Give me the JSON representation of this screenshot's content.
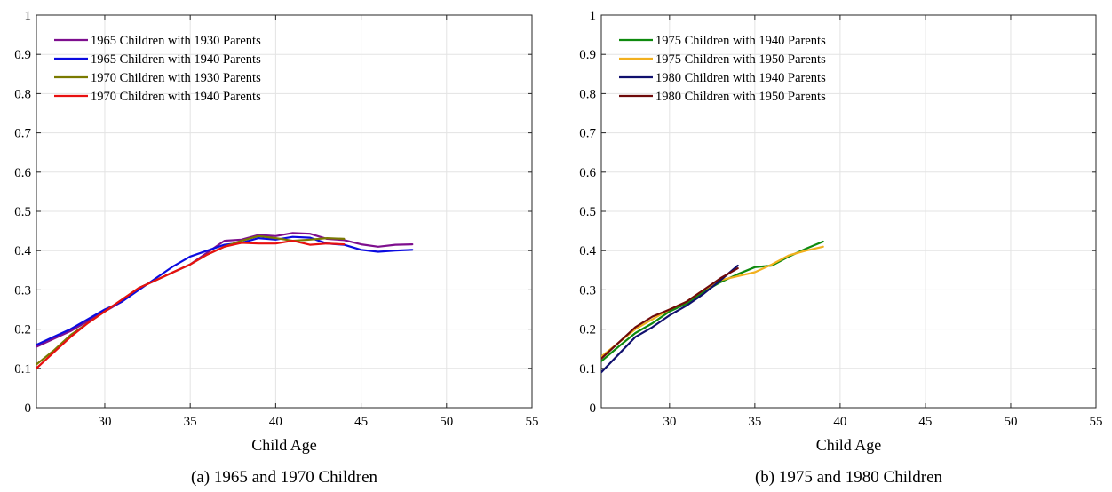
{
  "chart_data": [
    {
      "type": "line",
      "caption": "(a) 1965 and 1970 Children",
      "xlabel": "Child Age",
      "ylabel": "",
      "xlim": [
        26,
        55
      ],
      "ylim": [
        0,
        1
      ],
      "xticks": [
        "30",
        "35",
        "40",
        "45",
        "50",
        "55"
      ],
      "xtick_values": [
        30,
        35,
        40,
        45,
        50,
        55
      ],
      "yticks": [
        "0",
        "0.1",
        "0.2",
        "0.3",
        "0.4",
        "0.5",
        "0.6",
        "0.7",
        "0.8",
        "0.9",
        "1"
      ],
      "ytick_values": [
        0,
        0.1,
        0.2,
        0.3,
        0.4,
        0.5,
        0.6,
        0.7,
        0.8,
        0.9,
        1
      ],
      "grid": true,
      "legend_position": "top-left",
      "series": [
        {
          "name": "1965 Children with 1930 Parents",
          "color": "#7E0F8E",
          "x": [
            26,
            27,
            28,
            29,
            30,
            31,
            32,
            33,
            34,
            35,
            36,
            37,
            38,
            39,
            40,
            41,
            42,
            43,
            44,
            45,
            46,
            47,
            48
          ],
          "y": [
            0.155,
            0.175,
            0.195,
            0.22,
            0.245,
            0.27,
            0.305,
            0.325,
            0.345,
            0.365,
            0.395,
            0.425,
            0.428,
            0.44,
            0.437,
            0.445,
            0.443,
            0.43,
            0.427,
            0.416,
            0.41,
            0.415,
            0.416
          ]
        },
        {
          "name": "1965 Children with 1940 Parents",
          "color": "#0B0BE0",
          "x": [
            26,
            27,
            28,
            29,
            30,
            31,
            32,
            33,
            34,
            35,
            36,
            37,
            38,
            39,
            40,
            41,
            42,
            43,
            44,
            45,
            46,
            47,
            48
          ],
          "y": [
            0.16,
            0.18,
            0.2,
            0.225,
            0.25,
            0.27,
            0.3,
            0.33,
            0.36,
            0.385,
            0.4,
            0.415,
            0.42,
            0.432,
            0.428,
            0.435,
            0.433,
            0.418,
            0.415,
            0.402,
            0.397,
            0.4,
            0.402
          ]
        },
        {
          "name": "1970 Children with 1930 Parents",
          "color": "#7A7A00",
          "x": [
            26,
            27,
            28,
            29,
            30,
            31,
            32,
            33,
            34,
            35,
            36,
            37,
            38,
            39,
            40,
            41,
            42,
            43,
            44
          ],
          "y": [
            0.11,
            0.145,
            0.185,
            0.215,
            0.245,
            0.275,
            0.305,
            0.325,
            0.345,
            0.365,
            0.39,
            0.41,
            0.425,
            0.437,
            0.432,
            0.425,
            0.428,
            0.432,
            0.43
          ]
        },
        {
          "name": "1970 Children with 1940 Parents",
          "color": "#E81010",
          "x": [
            26,
            27,
            28,
            29,
            30,
            31,
            32,
            33,
            34,
            35,
            36,
            37,
            38,
            39,
            40,
            41,
            42,
            43,
            44
          ],
          "y": [
            0.1,
            0.14,
            0.18,
            0.215,
            0.245,
            0.275,
            0.305,
            0.325,
            0.345,
            0.365,
            0.39,
            0.41,
            0.42,
            0.418,
            0.418,
            0.425,
            0.415,
            0.418,
            0.416
          ]
        }
      ]
    },
    {
      "type": "line",
      "caption": "(b) 1975 and 1980 Children",
      "xlabel": "Child Age",
      "ylabel": "",
      "xlim": [
        26,
        55
      ],
      "ylim": [
        0,
        1
      ],
      "xticks": [
        "30",
        "35",
        "40",
        "45",
        "50",
        "55"
      ],
      "xtick_values": [
        30,
        35,
        40,
        45,
        50,
        55
      ],
      "yticks": [
        "0",
        "0.1",
        "0.2",
        "0.3",
        "0.4",
        "0.5",
        "0.6",
        "0.7",
        "0.8",
        "0.9",
        "1"
      ],
      "ytick_values": [
        0,
        0.1,
        0.2,
        0.3,
        0.4,
        0.5,
        0.6,
        0.7,
        0.8,
        0.9,
        1
      ],
      "grid": true,
      "legend_position": "top-left",
      "series": [
        {
          "name": "1975 Children with 1940 Parents",
          "color": "#0E8A0E",
          "x": [
            26,
            27,
            28,
            29,
            30,
            31,
            32,
            33,
            34,
            35,
            36,
            37,
            38,
            39
          ],
          "y": [
            0.118,
            0.155,
            0.19,
            0.215,
            0.245,
            0.265,
            0.295,
            0.32,
            0.34,
            0.358,
            0.362,
            0.385,
            0.405,
            0.423
          ]
        },
        {
          "name": "1975 Children with 1950 Parents",
          "color": "#F2B01E",
          "x": [
            26,
            27,
            28,
            29,
            30,
            31,
            32,
            33,
            34,
            35,
            36,
            37,
            38,
            39
          ],
          "y": [
            0.13,
            0.165,
            0.2,
            0.225,
            0.25,
            0.27,
            0.3,
            0.325,
            0.335,
            0.345,
            0.365,
            0.388,
            0.4,
            0.41
          ]
        },
        {
          "name": "1980 Children with 1940 Parents",
          "color": "#10106E",
          "x": [
            26,
            27,
            28,
            29,
            30,
            31,
            32,
            33,
            34
          ],
          "y": [
            0.09,
            0.135,
            0.18,
            0.205,
            0.235,
            0.26,
            0.29,
            0.325,
            0.362
          ]
        },
        {
          "name": "1980 Children with 1950 Parents",
          "color": "#6E0A0A",
          "x": [
            26,
            27,
            28,
            29,
            30,
            31,
            32,
            33,
            34
          ],
          "y": [
            0.125,
            0.165,
            0.205,
            0.232,
            0.25,
            0.27,
            0.3,
            0.33,
            0.355
          ]
        }
      ]
    }
  ]
}
